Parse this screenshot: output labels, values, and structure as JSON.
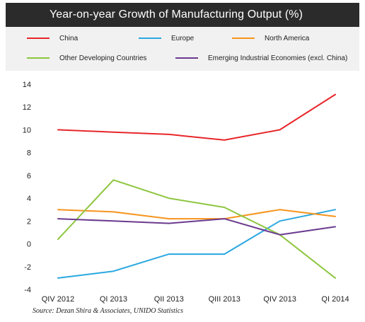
{
  "chart_data": {
    "type": "line",
    "title": "Year-on-year Growth of Manufacturing Output (%)",
    "categories": [
      "QIV 2012",
      "QI 2013",
      "QII 2013",
      "QIII 2013",
      "QIV 2013",
      "QI 2014"
    ],
    "ylim": [
      -4,
      14
    ],
    "yticks": [
      -4,
      -2,
      0,
      2,
      4,
      6,
      8,
      10,
      12,
      14
    ],
    "grid": false,
    "legend_position": "top",
    "series": [
      {
        "name": "China",
        "color": "#e8262a",
        "values": [
          10.0,
          9.8,
          9.6,
          9.1,
          10.0,
          13.1
        ]
      },
      {
        "name": "Europe",
        "color": "#29a8e0",
        "values": [
          -3.0,
          -2.4,
          -0.9,
          -0.9,
          2.0,
          3.0
        ]
      },
      {
        "name": "North America",
        "color": "#f7941d",
        "values": [
          3.0,
          2.8,
          2.2,
          2.2,
          3.0,
          2.4
        ]
      },
      {
        "name": "Other Developing Countries",
        "color": "#8dc63f",
        "values": [
          0.4,
          5.6,
          4.0,
          3.2,
          0.8,
          -3.0
        ]
      },
      {
        "name": "Emerging Industrial Economies (excl. China)",
        "color": "#6b3a8f",
        "values": [
          2.2,
          2.0,
          1.8,
          2.2,
          0.8,
          1.5
        ]
      }
    ]
  },
  "source": "Source: Dezan Shira & Associates, UNIDO Statistics"
}
